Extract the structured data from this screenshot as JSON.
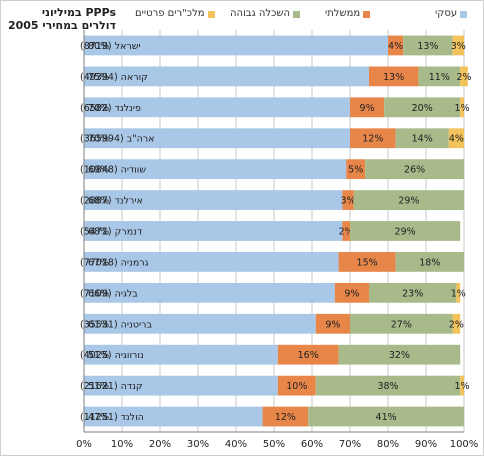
{
  "chart_data": {
    "type": "bar",
    "orientation": "horizontal",
    "stacked": "percent",
    "title": "PPPs במיליוני דולרים במחירי 2005",
    "categories": [
      "ישראל (8719)",
      "קוראה (49394)",
      "פינלנד (6582)",
      "ארה\"ב (365994)",
      "שוודיה (10848)",
      "אירלנד (2887)",
      "דנמרק (5471)",
      "גרמניה (77018)",
      "בלגיה (7109)",
      "בריטניה (35531)",
      "נורווגיה (4025)",
      "קנדה (21621)",
      "הולנד (11251)"
    ],
    "series": [
      {
        "name": "עסקי",
        "color": "#a9c7e6",
        "values": [
          80,
          75,
          70,
          70,
          69,
          68,
          68,
          67,
          66,
          61,
          51,
          51,
          47
        ]
      },
      {
        "name": "ממשלתי",
        "color": "#e8864a",
        "values": [
          4,
          13,
          9,
          12,
          5,
          3,
          2,
          15,
          9,
          9,
          16,
          10,
          12
        ]
      },
      {
        "name": "השכלה גבוהה",
        "color": "#a8b98a",
        "values": [
          13,
          11,
          20,
          14,
          26,
          29,
          29,
          18,
          23,
          27,
          32,
          38,
          41
        ]
      },
      {
        "name": "מלכ\"רים פרטיים",
        "color": "#f2c25c",
        "values": [
          3,
          2,
          1,
          4,
          0,
          0,
          0,
          0,
          1,
          2,
          0,
          1,
          0
        ]
      }
    ],
    "labels": [
      [
        "80%",
        "4%",
        "13%",
        "3%"
      ],
      [
        "75%",
        "13%",
        "11%",
        "2%"
      ],
      [
        "70%",
        "9%",
        "20%",
        "1%"
      ],
      [
        "70%",
        "12%",
        "14%",
        "4%"
      ],
      [
        "69%",
        "5%",
        "26%",
        ""
      ],
      [
        "68%",
        "3%",
        "29%",
        ""
      ],
      [
        "68%",
        "2%",
        "29%",
        ""
      ],
      [
        "67%",
        "15%",
        "18%",
        ""
      ],
      [
        "66%",
        "9%",
        "23%",
        "1%"
      ],
      [
        "61%",
        "9%",
        "27%",
        "2%"
      ],
      [
        "51%",
        "16%",
        "32%",
        ""
      ],
      [
        "51%",
        "10%",
        "38%",
        "1%"
      ],
      [
        "47%",
        "12%",
        "41%",
        ""
      ]
    ],
    "xlim": [
      0,
      100
    ],
    "x_ticks": [
      "0%",
      "10%",
      "20%",
      "30%",
      "40%",
      "50%",
      "60%",
      "70%",
      "80%",
      "90%",
      "100%"
    ],
    "grid": true,
    "legend_position": "top"
  }
}
